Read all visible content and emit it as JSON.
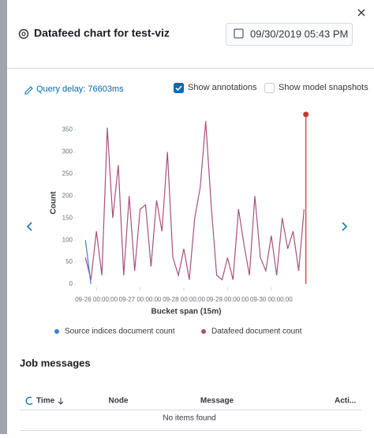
{
  "header": {
    "title": "Datafeed chart for test-viz",
    "date": "09/30/2019 05:43 PM"
  },
  "controls": {
    "query_delay": "Query delay: 76603ms",
    "show_annotations": {
      "label": "Show annotations",
      "checked": true
    },
    "show_model_snapshots": {
      "label": "Show model snapshots",
      "checked": false
    }
  },
  "chart_data": {
    "type": "line",
    "x": [
      "09-25 18:00:00",
      "09-25 21:00:00",
      "09-26 00:00:00",
      "09-26 03:00:00",
      "09-26 06:00:00",
      "09-26 09:00:00",
      "09-26 12:00:00",
      "09-26 15:00:00",
      "09-26 18:00:00",
      "09-26 21:00:00",
      "09-27 00:00:00",
      "09-27 03:00:00",
      "09-27 06:00:00",
      "09-27 09:00:00",
      "09-27 12:00:00",
      "09-27 15:00:00",
      "09-27 18:00:00",
      "09-27 21:00:00",
      "09-28 00:00:00",
      "09-28 03:00:00",
      "09-28 06:00:00",
      "09-28 09:00:00",
      "09-28 12:00:00",
      "09-28 15:00:00",
      "09-28 18:00:00",
      "09-28 21:00:00",
      "09-29 00:00:00",
      "09-29 03:00:00",
      "09-29 06:00:00",
      "09-29 09:00:00",
      "09-29 12:00:00",
      "09-29 15:00:00",
      "09-29 18:00:00",
      "09-29 21:00:00",
      "09-30 00:00:00",
      "09-30 03:00:00",
      "09-30 06:00:00",
      "09-30 09:00:00",
      "09-30 12:00:00",
      "09-30 15:00:00",
      "09-30 18:00:00"
    ],
    "series": [
      {
        "name": "Datafeed document count",
        "color": "#a9507f",
        "values": [
          60,
          10,
          120,
          20,
          355,
          150,
          270,
          20,
          200,
          30,
          170,
          180,
          40,
          190,
          120,
          300,
          60,
          20,
          80,
          10,
          150,
          220,
          370,
          180,
          20,
          10,
          60,
          10,
          170,
          90,
          20,
          200,
          60,
          30,
          110,
          20,
          150,
          80,
          120,
          30,
          170
        ]
      },
      {
        "name": "Source indices document count",
        "color": "#3d80d6",
        "values": [
          100,
          0,
          null,
          null,
          null,
          null,
          null,
          null,
          null,
          null,
          null,
          null,
          null,
          null,
          null,
          null,
          null,
          null,
          null,
          null,
          null,
          null,
          null,
          null,
          null,
          null,
          null,
          null,
          null,
          null,
          null,
          null,
          null,
          null,
          null,
          null,
          null,
          null,
          null,
          null,
          null
        ]
      }
    ],
    "annotation": {
      "x": "09-30 19:00:00",
      "color": "#c0392b"
    },
    "xlim": [
      "09-25 17:00:00",
      "09-30 20:00:00"
    ],
    "xticks": [
      "09-26 00:00:00",
      "09-27 00:00:00",
      "09-28 00:00:00",
      "09-29 00:00:00",
      "09-30 00:00:00"
    ],
    "ylim": [
      0,
      385
    ],
    "yticks": [
      0,
      50,
      100,
      150,
      200,
      250,
      300,
      350
    ],
    "xlabel": "Bucket span (15m)",
    "ylabel": "Count"
  },
  "job_messages": {
    "title": "Job messages",
    "columns": [
      "Time",
      "Node",
      "Message",
      "Acti..."
    ],
    "empty": "No items found"
  }
}
